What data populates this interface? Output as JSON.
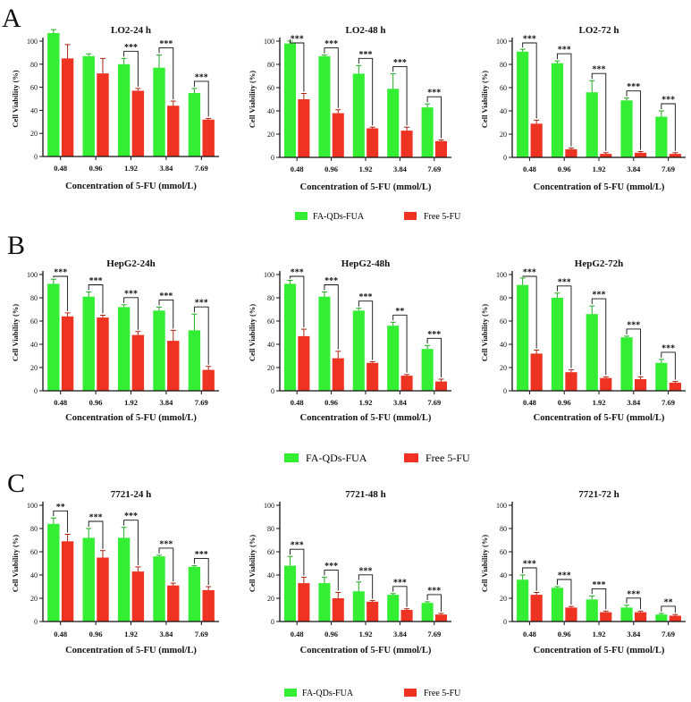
{
  "figure": {
    "panels": [
      {
        "letter": "A",
        "legend": {
          "series": [
            "FA-QDs-FUA",
            "Free 5-FU"
          ]
        }
      },
      {
        "letter": "B",
        "legend": {
          "series": [
            "FA-QDs-FUA",
            "Free 5-FU"
          ]
        }
      },
      {
        "letter": "C",
        "legend": {
          "series": [
            "FA-QDs-FUA",
            "Free 5-FU"
          ]
        }
      }
    ],
    "colors": {
      "series1": "#33ee33",
      "series2": "#ee3322",
      "axis": "#111111"
    }
  },
  "chart_data": [
    {
      "type": "bar",
      "title": "LO2-24 h",
      "xlabel": "Concentration of 5-FU (mmol/L)",
      "ylabel": "Cell Viability (%)",
      "ylim": [
        0,
        100
      ],
      "yticks": [
        0,
        20,
        40,
        60,
        80,
        100
      ],
      "categories": [
        "0.48",
        "0.96",
        "1.92",
        "3.84",
        "7.69"
      ],
      "series": [
        {
          "name": "FA-QDs-FUA",
          "values": [
            107,
            87,
            80,
            77,
            55
          ],
          "errors": [
            3,
            2,
            5,
            11,
            4
          ]
        },
        {
          "name": "Free 5-FU",
          "values": [
            85,
            72,
            57,
            44,
            32
          ],
          "errors": [
            12,
            13,
            2,
            4,
            1
          ]
        }
      ],
      "significance": [
        "",
        "",
        "***",
        "***",
        "***"
      ]
    },
    {
      "type": "bar",
      "title": "LO2-48 h",
      "xlabel": "Concentration of 5-FU (mmol/L)",
      "ylabel": "Cell Viability (%)",
      "ylim": [
        0,
        100
      ],
      "yticks": [
        0,
        20,
        40,
        60,
        80,
        100
      ],
      "categories": [
        "0.48",
        "0.96",
        "1.92",
        "3.84",
        "7.69"
      ],
      "series": [
        {
          "name": "FA-QDs-FUA",
          "values": [
            98,
            87,
            72,
            59,
            43
          ],
          "errors": [
            2,
            1,
            7,
            13,
            3
          ]
        },
        {
          "name": "Free 5-FU",
          "values": [
            50,
            38,
            25,
            23,
            14
          ],
          "errors": [
            5,
            3,
            1,
            3,
            1
          ]
        }
      ],
      "significance": [
        "***",
        "***",
        "***",
        "***",
        "***"
      ]
    },
    {
      "type": "bar",
      "title": "LO2-72 h",
      "xlabel": "Concentration of 5-FU (mmol/L)",
      "ylabel": "Cell Viability (%)",
      "ylim": [
        0,
        100
      ],
      "yticks": [
        0,
        20,
        40,
        60,
        80,
        100
      ],
      "categories": [
        "0.48",
        "0.96",
        "1.92",
        "3.84",
        "7.69"
      ],
      "series": [
        {
          "name": "FA-QDs-FUA",
          "values": [
            91,
            81,
            56,
            49,
            35
          ],
          "errors": [
            2,
            2,
            10,
            2,
            5
          ]
        },
        {
          "name": "Free 5-FU",
          "values": [
            29,
            7,
            3,
            4,
            3
          ],
          "errors": [
            3,
            1,
            1,
            1,
            1
          ]
        }
      ],
      "significance": [
        "***",
        "***",
        "***",
        "***",
        "***"
      ]
    },
    {
      "type": "bar",
      "title": "HepG2-24h",
      "xlabel": "Concentration of 5-FU (mmol/L)",
      "ylabel": "Cell Viability (%)",
      "ylim": [
        0,
        100
      ],
      "yticks": [
        0,
        20,
        40,
        60,
        80,
        100
      ],
      "categories": [
        "0.48",
        "0.96",
        "1.92",
        "3.84",
        "7.69"
      ],
      "series": [
        {
          "name": "FA-QDs-FUA",
          "values": [
            92,
            81,
            72,
            69,
            52
          ],
          "errors": [
            4,
            4,
            2,
            3,
            14
          ]
        },
        {
          "name": "Free 5-FU",
          "values": [
            64,
            63,
            48,
            43,
            18
          ],
          "errors": [
            3,
            2,
            3,
            9,
            3
          ]
        }
      ],
      "significance": [
        "***",
        "***",
        "***",
        "***",
        "***"
      ]
    },
    {
      "type": "bar",
      "title": "HepG2-48h",
      "xlabel": "Concentration of 5-FU (mmol/L)",
      "ylabel": "Cell Viability (%)",
      "ylim": [
        0,
        100
      ],
      "yticks": [
        0,
        20,
        40,
        60,
        80,
        100
      ],
      "categories": [
        "0.48",
        "0.96",
        "1.92",
        "3.84",
        "7.69"
      ],
      "series": [
        {
          "name": "FA-QDs-FUA",
          "values": [
            92,
            81,
            69,
            56,
            36
          ],
          "errors": [
            3,
            4,
            2,
            3,
            3
          ]
        },
        {
          "name": "Free 5-FU",
          "values": [
            47,
            28,
            24,
            13,
            8
          ],
          "errors": [
            6,
            6,
            1,
            1,
            2
          ]
        }
      ],
      "significance": [
        "***",
        "***",
        "***",
        "**",
        "***"
      ]
    },
    {
      "type": "bar",
      "title": "HepG2-72h",
      "xlabel": "Concentration of 5-FU (mmol/L)",
      "ylabel": "Cell Viability (%)",
      "ylim": [
        0,
        100
      ],
      "yticks": [
        0,
        20,
        40,
        60,
        80,
        100
      ],
      "categories": [
        "0.48",
        "0.96",
        "1.92",
        "3.84",
        "7.69"
      ],
      "series": [
        {
          "name": "FA-QDs-FUA",
          "values": [
            91,
            80,
            66,
            46,
            24
          ],
          "errors": [
            6,
            4,
            7,
            1,
            3
          ]
        },
        {
          "name": "Free 5-FU",
          "values": [
            32,
            16,
            11,
            10,
            7
          ],
          "errors": [
            3,
            2,
            1,
            2,
            1
          ]
        }
      ],
      "significance": [
        "***",
        "***",
        "***",
        "***",
        "***"
      ]
    },
    {
      "type": "bar",
      "title": "7721-24 h",
      "xlabel": "Concentration of 5-FU (mmol/L)",
      "ylabel": "Cell Viability (%)",
      "ylim": [
        0,
        100
      ],
      "yticks": [
        0,
        20,
        40,
        60,
        80,
        100
      ],
      "categories": [
        "0.48",
        "0.96",
        "1.92",
        "3.84",
        "7.69"
      ],
      "series": [
        {
          "name": "FA-QDs-FUA",
          "values": [
            84,
            72,
            72,
            56,
            47
          ],
          "errors": [
            5,
            8,
            9,
            1,
            1
          ]
        },
        {
          "name": "Free 5-FU",
          "values": [
            69,
            55,
            43,
            31,
            27
          ],
          "errors": [
            6,
            6,
            4,
            2,
            3
          ]
        }
      ],
      "significance": [
        "**",
        "***",
        "***",
        "***",
        "***"
      ]
    },
    {
      "type": "bar",
      "title": "7721-48 h",
      "xlabel": "Concentration of 5-FU (mmol/L)",
      "ylabel": "Cell Viability (%)",
      "ylim": [
        0,
        100
      ],
      "yticks": [
        0,
        20,
        40,
        60,
        80,
        100
      ],
      "categories": [
        "0.48",
        "0.96",
        "1.92",
        "3.84",
        "7.69"
      ],
      "series": [
        {
          "name": "FA-QDs-FUA",
          "values": [
            48,
            33,
            26,
            23,
            16
          ],
          "errors": [
            8,
            5,
            8,
            1,
            1
          ]
        },
        {
          "name": "Free 5-FU",
          "values": [
            33,
            20,
            17,
            10,
            6
          ],
          "errors": [
            5,
            5,
            1,
            1,
            1
          ]
        }
      ],
      "significance": [
        "***",
        "***",
        "***",
        "***",
        "***"
      ]
    },
    {
      "type": "bar",
      "title": "7721-72 h",
      "xlabel": "Concentration of 5-FU (mmol/L)",
      "ylabel": "Cell Viability (%)",
      "ylim": [
        0,
        100
      ],
      "yticks": [
        0,
        20,
        40,
        60,
        80,
        100
      ],
      "categories": [
        "0.48",
        "0.96",
        "1.92",
        "3.84",
        "7.69"
      ],
      "series": [
        {
          "name": "FA-QDs-FUA",
          "values": [
            36,
            29,
            19,
            12,
            6
          ],
          "errors": [
            4,
            1,
            3,
            2,
            1
          ]
        },
        {
          "name": "Free 5-FU",
          "values": [
            23,
            12,
            8,
            8,
            5
          ],
          "errors": [
            2,
            1,
            1,
            1,
            1
          ]
        }
      ],
      "significance": [
        "***",
        "***",
        "***",
        "***",
        "**"
      ]
    }
  ]
}
